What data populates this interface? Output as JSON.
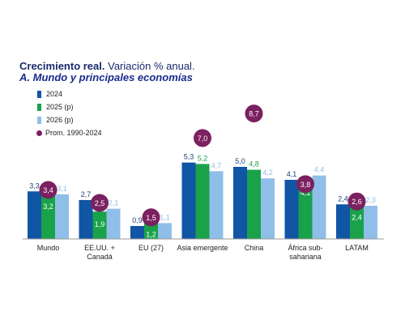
{
  "chart_data": {
    "type": "bar",
    "title_bold": "Crecimiento real.",
    "title_rest": "Variación % anual.",
    "subtitle": "A. Mundo y principales economías",
    "categories": [
      "Mundo",
      "EE.UU. + Canadá",
      "EU (27)",
      "Asia emergente",
      "China",
      "África sub-sahariana",
      "LATAM"
    ],
    "category_lines": [
      [
        "Mundo"
      ],
      [
        "EE.UU. +",
        "Canadá"
      ],
      [
        "EU (27)"
      ],
      [
        "Asia emergente"
      ],
      [
        "China"
      ],
      [
        "África sub-",
        "sahariana"
      ],
      [
        "LATAM"
      ]
    ],
    "series": [
      {
        "name": "2024",
        "values": [
          3.3,
          2.7,
          0.9,
          5.3,
          5.0,
          4.1,
          2.4
        ]
      },
      {
        "name": "2025 (p)",
        "values": [
          3.2,
          1.9,
          1.2,
          5.2,
          4.8,
          4.1,
          2.4
        ]
      },
      {
        "name": "2026 (p)",
        "values": [
          3.1,
          2.1,
          1.1,
          4.7,
          4.2,
          4.4,
          2.3
        ]
      }
    ],
    "average": {
      "name": "Prom. 1990-2024",
      "values": [
        3.4,
        2.5,
        1.5,
        7.0,
        8.7,
        3.8,
        2.6
      ]
    },
    "value_labels": {
      "series": [
        [
          "3,3",
          "2,7",
          "0,9",
          "5,3",
          "5,0",
          "4,1",
          "2,4"
        ],
        [
          "3,2",
          "1,9",
          "1,2",
          "5,2",
          "4,8",
          "4,1",
          "2,4"
        ],
        [
          "3,1",
          "2,1",
          "1,1",
          "4,7",
          "4,2",
          "4,4",
          "2,3"
        ]
      ],
      "average": [
        "3,4",
        "2,5",
        "1,5",
        "7,0",
        "8,7",
        "3,8",
        "2,6"
      ]
    },
    "ylim": [
      0,
      10
    ],
    "grid": false,
    "legend_position": "top-left",
    "colors": {
      "2024": "#1155a5",
      "2025 (p)": "#19a24a",
      "2026 (p)": "#8fbfe8",
      "average": "#7b2060",
      "axis": "#9a9a9a"
    }
  }
}
